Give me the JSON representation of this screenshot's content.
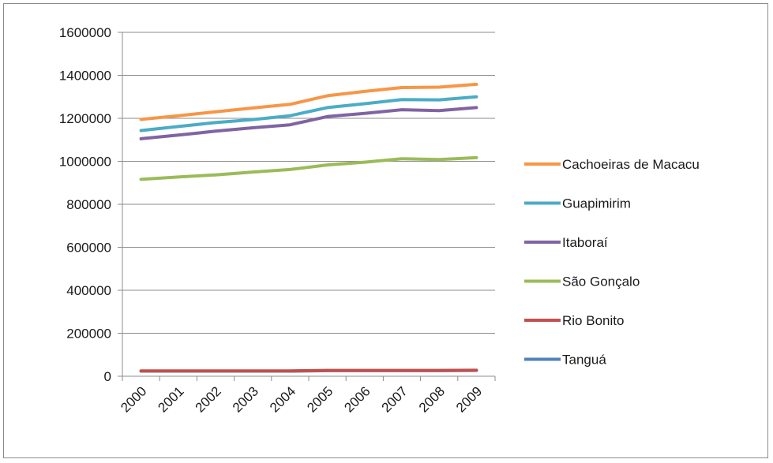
{
  "chart_data": {
    "type": "line",
    "title": "",
    "xlabel": "",
    "ylabel": "",
    "categories": [
      "2000",
      "2001",
      "2002",
      "2003",
      "2004",
      "2005",
      "2006",
      "2007",
      "2008",
      "2009"
    ],
    "ylim": [
      0,
      1600000
    ],
    "yticks": [
      "0",
      "200000",
      "400000",
      "600000",
      "800000",
      "1000000",
      "1200000",
      "1400000",
      "1600000"
    ],
    "grid": "horizontal",
    "legend_position": "right",
    "series": [
      {
        "name": "Cachoeiras de Macacu",
        "color": "#f79646",
        "values": [
          1195000,
          1212000,
          1230000,
          1248000,
          1265000,
          1305000,
          1325000,
          1343000,
          1345000,
          1358000
        ]
      },
      {
        "name": "Guapimirim",
        "color": "#4bacc6",
        "values": [
          1143000,
          1162000,
          1180000,
          1194000,
          1212000,
          1250000,
          1268000,
          1287000,
          1286000,
          1300000
        ]
      },
      {
        "name": "Itaboraí",
        "color": "#8064a2",
        "values": [
          1105000,
          1122000,
          1140000,
          1156000,
          1170000,
          1208000,
          1223000,
          1240000,
          1236000,
          1250000
        ]
      },
      {
        "name": "São Gonçalo",
        "color": "#9bbb59",
        "values": [
          916000,
          927000,
          937000,
          950000,
          962000,
          983000,
          996000,
          1012000,
          1008000,
          1017000
        ]
      },
      {
        "name": "Rio Bonito",
        "color": "#c0504d",
        "values": [
          25000,
          25000,
          25000,
          25000,
          25000,
          27000,
          27000,
          27000,
          27000,
          28000
        ]
      },
      {
        "name": "Tanguá",
        "color": "#4f81bd",
        "values": [
          24000,
          24000,
          24000,
          24000,
          24000,
          26000,
          26000,
          26000,
          26000,
          27000
        ]
      }
    ]
  }
}
